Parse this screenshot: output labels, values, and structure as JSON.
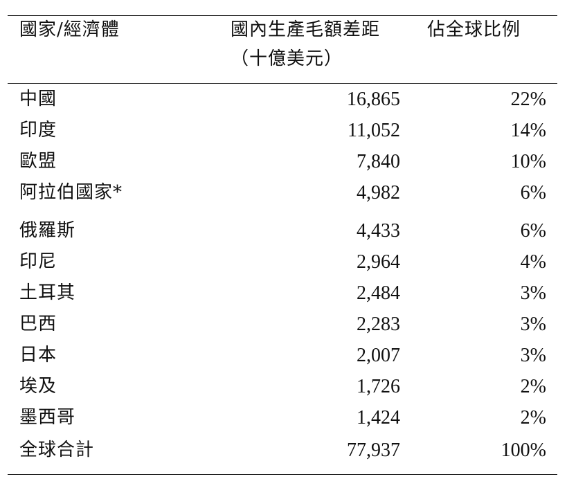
{
  "table": {
    "headers": {
      "name": "國家/經濟體",
      "gdp": "國內生產毛額差距",
      "gdp_unit": "（十億美元）",
      "share": "佔全球比例"
    },
    "rows": [
      {
        "name": "中國",
        "gdp": "16,865",
        "share": "22%"
      },
      {
        "name": "印度",
        "gdp": "11,052",
        "share": "14%"
      },
      {
        "name": "歐盟",
        "gdp": "7,840",
        "share": "10%"
      },
      {
        "name": "阿拉伯國家*",
        "gdp": "4,982",
        "share": "6%"
      },
      {
        "name": "俄羅斯",
        "gdp": "4,433",
        "share": "6%"
      },
      {
        "name": "印尼",
        "gdp": "2,964",
        "share": "4%"
      },
      {
        "name": "土耳其",
        "gdp": "2,484",
        "share": "3%"
      },
      {
        "name": "巴西",
        "gdp": "2,283",
        "share": "3%"
      },
      {
        "name": "日本",
        "gdp": "2,007",
        "share": "3%"
      },
      {
        "name": "埃及",
        "gdp": "1,726",
        "share": "2%"
      },
      {
        "name": "墨西哥",
        "gdp": "1,424",
        "share": "2%"
      },
      {
        "name": "全球合計",
        "gdp": "77,937",
        "share": "100%"
      }
    ]
  }
}
